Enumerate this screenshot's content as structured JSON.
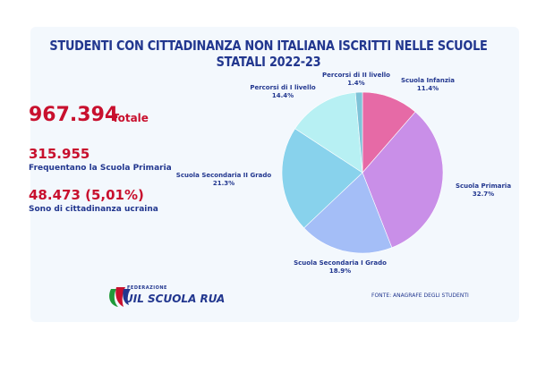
{
  "title": "STUDENTI CON CITTADINANZA NON ITALIANA ISCRITTI NELLE SCUOLE STATALI 2022-23",
  "stats": {
    "total_value": "967.394",
    "total_label": "Totale",
    "primaria_value": "315.955",
    "primaria_label": "Frequentano la Scuola Primaria",
    "ucraina_value": "48.473 (5,01%)",
    "ucraina_label": "Sono di cittadinanza ucraina"
  },
  "logo": {
    "federazione": "FEDERAZIONE",
    "name": "UIL SCUOLA RUA"
  },
  "source": "FONTE: ANAGRAFE DEGLI STUDENTI",
  "chart_data": {
    "type": "pie",
    "series": [
      {
        "name": "Scuola Infanzia",
        "value": 11.4,
        "label": "11.4%",
        "color": "#e66aa6"
      },
      {
        "name": "Scuola Primaria",
        "value": 32.7,
        "label": "32.7%",
        "color": "#c98fe8"
      },
      {
        "name": "Scuola Secondaria I Grado",
        "value": 18.9,
        "label": "18.9%",
        "color": "#a4bef7"
      },
      {
        "name": "Scuola Secondaria II Grado",
        "value": 21.3,
        "label": "21.3%",
        "color": "#88d2ec"
      },
      {
        "name": "Percorsi di I livello",
        "value": 14.4,
        "label": "14.4%",
        "color": "#b7f0f3"
      },
      {
        "name": "Percorsi di II livello",
        "value": 1.4,
        "label": "1.4%",
        "color": "#7ec3d8"
      }
    ]
  }
}
